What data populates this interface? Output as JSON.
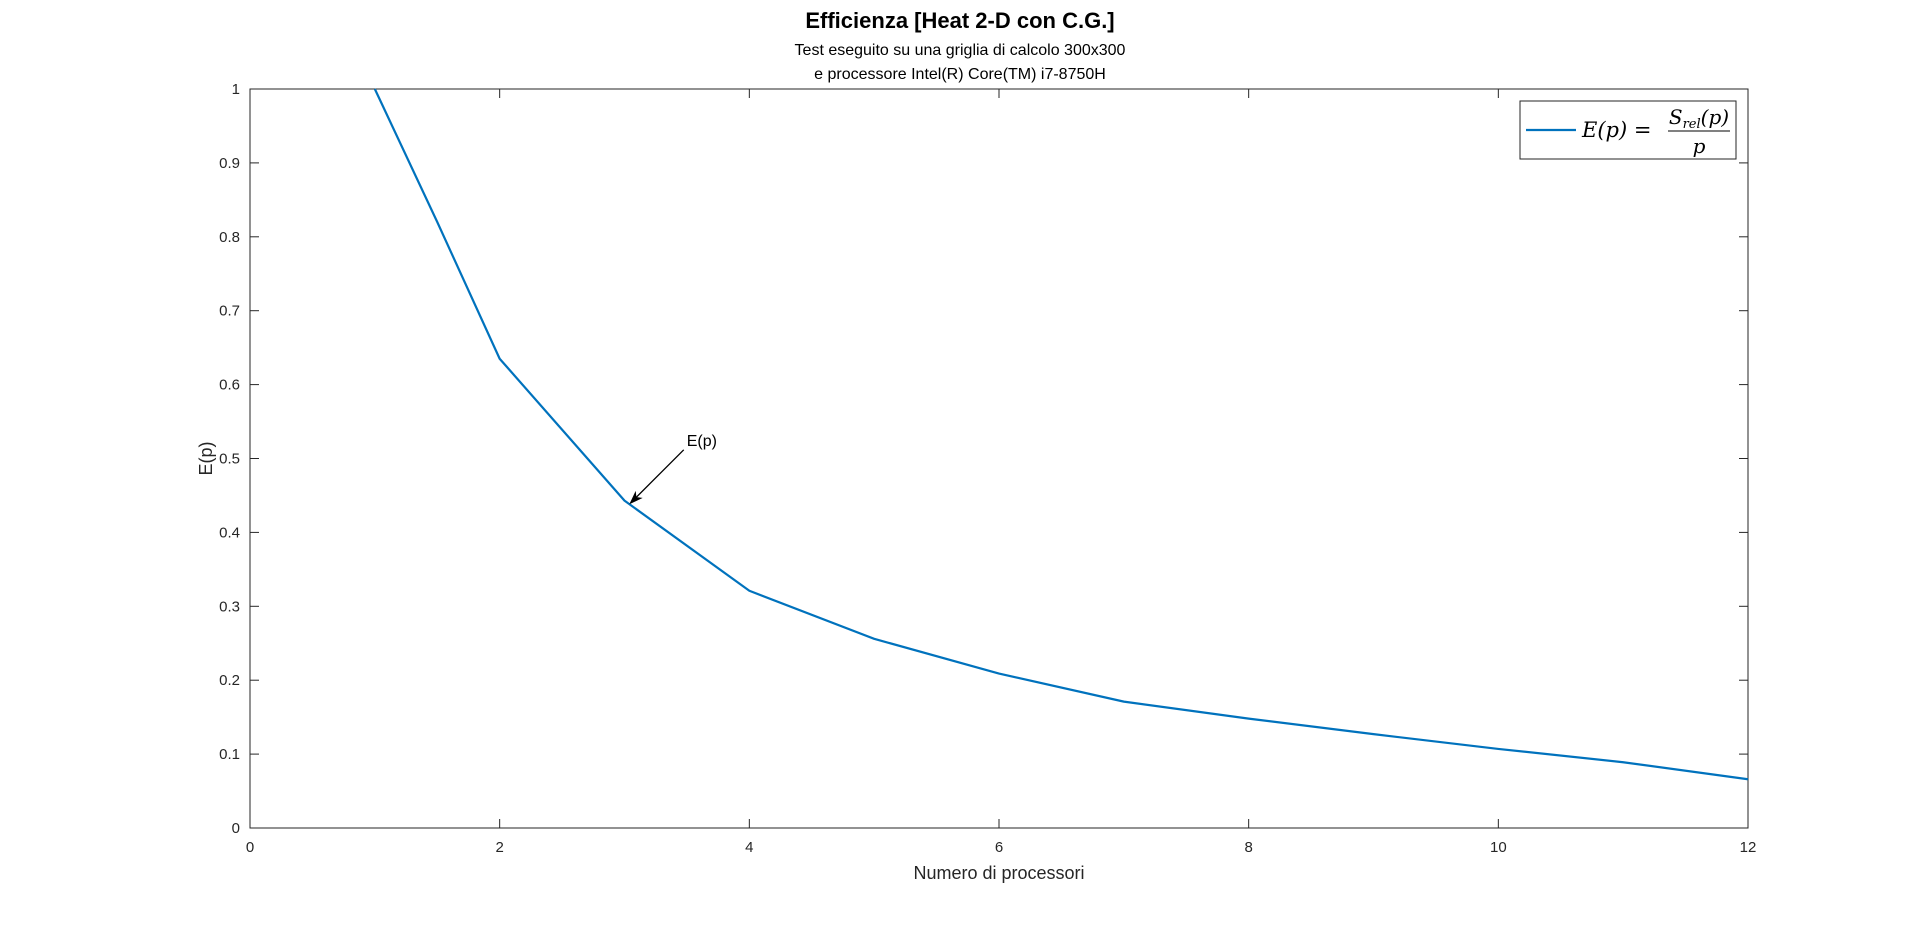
{
  "chart_data": {
    "type": "line",
    "title": "Efficienza [Heat 2-D con C.G.]",
    "subtitle": [
      "Test eseguito su una griglia di calcolo 300x300",
      "e processore Intel(R) Core(TM) i7-8750H"
    ],
    "xlabel": "Numero di processori",
    "ylabel": "E(p)",
    "xlim": [
      0,
      12
    ],
    "ylim": [
      0,
      1
    ],
    "xticks": [
      0,
      2,
      4,
      6,
      8,
      10,
      12
    ],
    "yticks": [
      0,
      0.1,
      0.2,
      0.3,
      0.4,
      0.5,
      0.6,
      0.7,
      0.8,
      0.9,
      1
    ],
    "grid": false,
    "legend_position": "top-right",
    "series": [
      {
        "name": "E(p) = S_rel(p) / p",
        "color": "#0072BD",
        "x": [
          1,
          1.5,
          2,
          3,
          4,
          5,
          6,
          7,
          8,
          9,
          10,
          11,
          12
        ],
        "y": [
          1.0,
          0.82,
          0.635,
          0.443,
          0.321,
          0.256,
          0.209,
          0.171,
          0.148,
          0.127,
          0.107,
          0.089,
          0.066
        ]
      }
    ],
    "annotations": [
      {
        "text": "E(p)",
        "arrow_to": {
          "x": 3.05,
          "y": 0.44
        }
      }
    ]
  }
}
